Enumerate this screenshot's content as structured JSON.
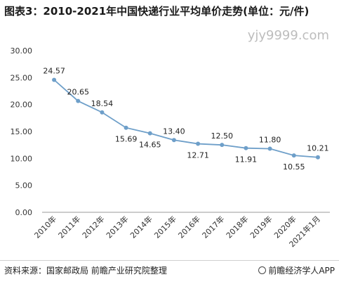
{
  "title": "图表3：2010-2021年中国快递行业平均单价走势(单位：元/件)",
  "watermark": "yjy9999.com",
  "source": "资料来源：国家邮政局 前瞻产业研究院整理",
  "credit": "前瞻经济学人APP",
  "colors": {
    "line": "#6e9fc9",
    "marker": "#6e9fc9",
    "axis": "#999999"
  },
  "chart_data": {
    "type": "line",
    "categories": [
      "2010年",
      "2011年",
      "2012年",
      "2013年",
      "2014年",
      "2015年",
      "2016年",
      "2017年",
      "2018年",
      "2019年",
      "2020年",
      "2021年1月"
    ],
    "values": [
      24.57,
      20.65,
      18.54,
      15.69,
      14.65,
      13.4,
      12.71,
      12.5,
      11.91,
      11.8,
      10.55,
      10.21
    ],
    "labels": [
      "24.57",
      "20.65",
      "18.54",
      "15.69",
      "14.65",
      "13.40",
      "12.71",
      "12.50",
      "11.91",
      "11.80",
      "10.55",
      "10.21"
    ],
    "yticks": [
      "0.00",
      "5.00",
      "10.00",
      "15.00",
      "20.00",
      "25.00",
      "30.00"
    ],
    "ylim": [
      0,
      30
    ],
    "grid": false,
    "legend": "none"
  }
}
